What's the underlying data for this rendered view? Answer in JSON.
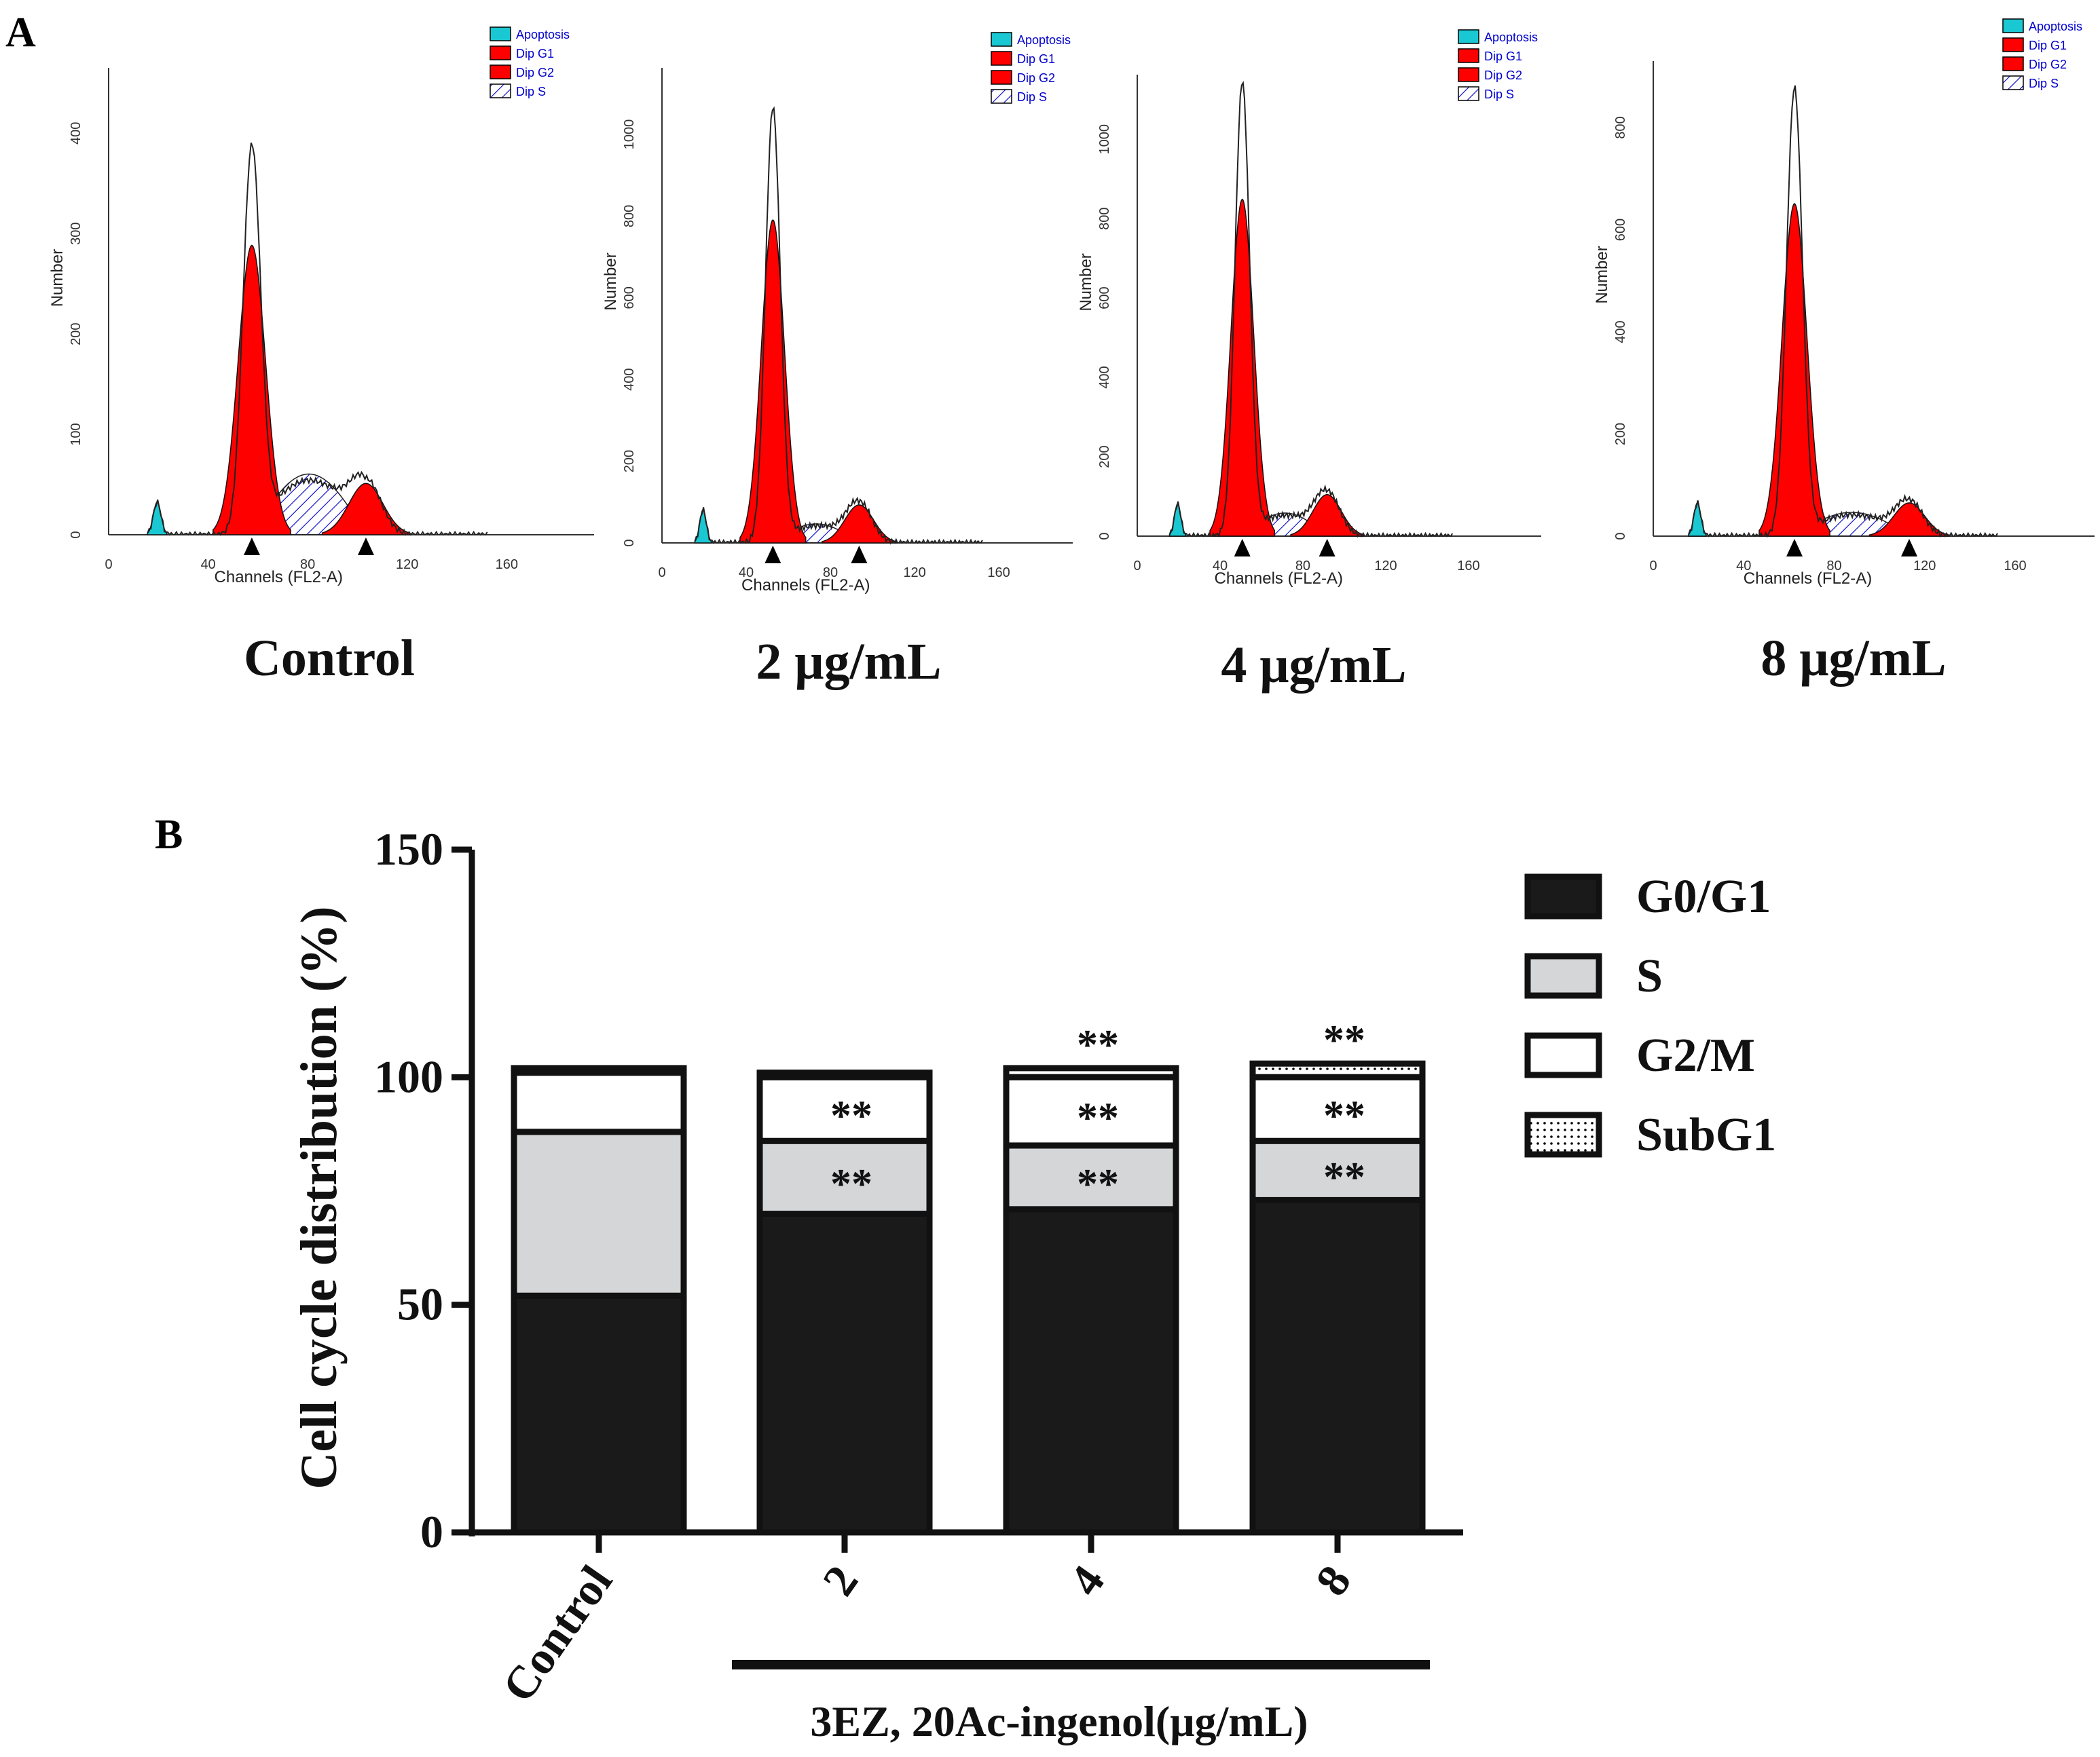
{
  "panel_a_letter": "A",
  "panel_b_letter": "B",
  "histograms": [
    {
      "caption": "Control",
      "legend": [
        "Apoptosis",
        "Dip G1",
        "Dip G2",
        "Dip S"
      ],
      "ylabel": "Number",
      "xlabel": "Channels (FL2-A)",
      "xticks": [
        "0",
        "40",
        "80",
        "120",
        "160"
      ],
      "yticks": [
        "0",
        "100",
        "200",
        "300",
        "400"
      ]
    },
    {
      "caption": "2 μg/mL",
      "legend": [
        "Apoptosis",
        "Dip G1",
        "Dip G2",
        "Dip S"
      ],
      "ylabel": "Number",
      "xlabel": "Channels (FL2-A)",
      "xticks": [
        "0",
        "40",
        "80",
        "120",
        "160"
      ],
      "yticks": [
        "0",
        "200",
        "400",
        "600",
        "800",
        "1000"
      ]
    },
    {
      "caption": "4 μg/mL",
      "legend": [
        "Apoptosis",
        "Dip G1",
        "Dip G2",
        "Dip S"
      ],
      "ylabel": "Number",
      "xlabel": "Channels (FL2-A)",
      "xticks": [
        "0",
        "40",
        "80",
        "120",
        "160"
      ],
      "yticks": [
        "0",
        "200",
        "400",
        "600",
        "800",
        "1000"
      ]
    },
    {
      "caption": "8 μg/mL",
      "legend": [
        "Apoptosis",
        "Dip G1",
        "Dip G2",
        "Dip S"
      ],
      "ylabel": "Number",
      "xlabel": "Channels (FL2-A)",
      "xticks": [
        "0",
        "40",
        "80",
        "120",
        "160"
      ],
      "yticks": [
        "0",
        "200",
        "400",
        "600",
        "800"
      ]
    }
  ],
  "colors": {
    "apoptosis": "#19c8d2",
    "dip_g1": "#ff0000",
    "dip_g2": "#ff0000",
    "dip_s_hatch": "#0000cc",
    "legend_text": "#0000cc",
    "g0g1": "#1a1a1a",
    "s": "#d4d6d8",
    "g2m": "#ffffff",
    "subg1": "#ffffff"
  },
  "chart_data": {
    "type": "bar",
    "stacked": true,
    "categories": [
      "Control",
      "2",
      "4",
      "8"
    ],
    "ylabel": "Cell cycle distribution (%)",
    "xlabel": "3EZ, 20Ac-ingenol(μg/mL)",
    "ylim": [
      0,
      150
    ],
    "yticks": [
      "0",
      "50",
      "100",
      "150"
    ],
    "series": [
      {
        "name": "G0/G1",
        "values": [
          52,
          70,
          71,
          73
        ]
      },
      {
        "name": "S",
        "values": [
          36,
          16,
          14,
          13
        ]
      },
      {
        "name": "G2/M",
        "values": [
          13,
          14,
          15,
          14
        ]
      },
      {
        "name": "SubG1",
        "values": [
          1,
          1,
          2,
          3
        ]
      }
    ],
    "annotations": [
      {
        "category": "2",
        "segment": "S",
        "text": "**"
      },
      {
        "category": "2",
        "segment": "G2/M",
        "text": "**"
      },
      {
        "category": "4",
        "segment": "S",
        "text": "**"
      },
      {
        "category": "4",
        "segment": "G2/M",
        "text": "**"
      },
      {
        "category": "4",
        "segment": "SubG1",
        "text": "**"
      },
      {
        "category": "8",
        "segment": "S",
        "text": "**"
      },
      {
        "category": "8",
        "segment": "G2/M",
        "text": "**"
      },
      {
        "category": "8",
        "segment": "SubG1",
        "text": "**"
      }
    ],
    "legend_position": "right"
  }
}
